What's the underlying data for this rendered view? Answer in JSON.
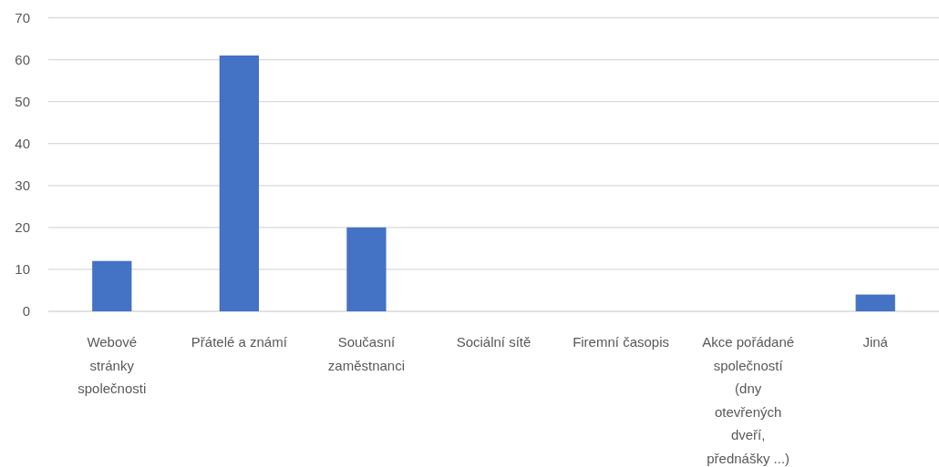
{
  "chart_data": {
    "type": "bar",
    "categories": [
      "Webové stránky společnosti",
      "Přátelé a známí",
      "Současní zaměstnanci",
      "Sociální sítě",
      "Firemní časopis",
      "Akce pořádané společností (dny otevřených dveří, přednášky ...)",
      "Jiná"
    ],
    "values": [
      12,
      61,
      20,
      0,
      0,
      0,
      4
    ],
    "color": "#4472c4",
    "ylim": [
      0,
      70
    ],
    "yticks": [
      0,
      10,
      20,
      30,
      40,
      50,
      60,
      70
    ],
    "grid": "y"
  }
}
